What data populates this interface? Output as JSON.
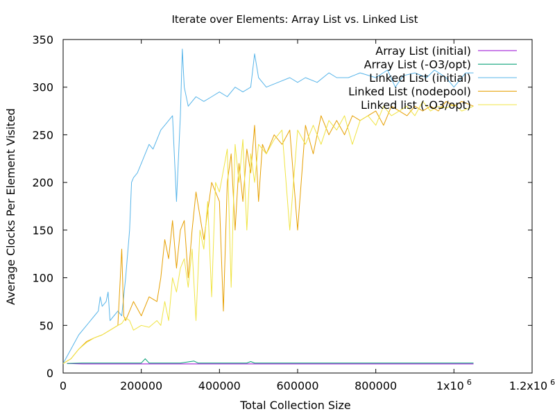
{
  "chart_data": {
    "type": "line",
    "title": "Iterate over Elements:  Array List vs. Linked List",
    "xlabel": "Total Collection Size",
    "ylabel": "Average Clocks Per Element Visited",
    "xlim": [
      0,
      1200000
    ],
    "ylim": [
      0,
      350
    ],
    "x_ticks": [
      {
        "value": 0,
        "label": "0"
      },
      {
        "value": 200000,
        "label": "200000"
      },
      {
        "value": 400000,
        "label": "400000"
      },
      {
        "value": 600000,
        "label": "600000"
      },
      {
        "value": 800000,
        "label": "800000"
      },
      {
        "value": 1000000,
        "label": "1x10",
        "exp": "6"
      },
      {
        "value": 1200000,
        "label": "1.2x10",
        "exp": "6"
      }
    ],
    "y_ticks": [
      0,
      50,
      100,
      150,
      200,
      250,
      300,
      350
    ],
    "grid": false,
    "legend_position": "top-right",
    "series": [
      {
        "name": "Array List (initial)",
        "color": "#9400d3",
        "x": [
          10000,
          50000,
          100000,
          150000,
          200000,
          250000,
          300000,
          350000,
          400000,
          450000,
          500000,
          550000,
          600000,
          650000,
          700000,
          750000,
          800000,
          850000,
          900000,
          950000,
          1000000,
          1050000
        ],
        "y": [
          10,
          9.5,
          9.5,
          9.5,
          9.5,
          9.5,
          9.5,
          9.5,
          9.5,
          9.5,
          9.5,
          9.5,
          9.5,
          9.5,
          9.5,
          9.5,
          9.5,
          9.5,
          9.5,
          9.5,
          9.5,
          9.5
        ]
      },
      {
        "name": "Array List (-O3/opt)",
        "color": "#009e73",
        "x": [
          10000,
          50000,
          100000,
          150000,
          200000,
          210000,
          220000,
          300000,
          335000,
          345000,
          400000,
          470000,
          480000,
          490000,
          550000,
          600000,
          650000,
          700000,
          750000,
          800000,
          850000,
          900000,
          950000,
          1000000,
          1050000
        ],
        "y": [
          10,
          10.5,
          10.5,
          10.5,
          10.5,
          15,
          10.5,
          10.5,
          12.5,
          10.5,
          10.5,
          10.5,
          12,
          10.5,
          10.5,
          10.5,
          10.5,
          10.5,
          10.5,
          10.5,
          10.5,
          10.5,
          10.5,
          10.5,
          10.5
        ]
      },
      {
        "name": "Linked List (initial)",
        "color": "#56b4e9",
        "x": [
          0,
          20000,
          40000,
          60000,
          80000,
          90000,
          95000,
          100000,
          110000,
          115000,
          120000,
          130000,
          140000,
          150000,
          160000,
          170000,
          175000,
          180000,
          190000,
          200000,
          210000,
          220000,
          230000,
          240000,
          250000,
          260000,
          270000,
          280000,
          290000,
          300000,
          305000,
          310000,
          320000,
          330000,
          340000,
          360000,
          380000,
          400000,
          420000,
          440000,
          460000,
          480000,
          490000,
          500000,
          520000,
          550000,
          580000,
          600000,
          620000,
          650000,
          680000,
          700000,
          730000,
          760000,
          800000,
          830000,
          850000,
          870000,
          900000,
          930000,
          950000,
          980000,
          1000000,
          1030000,
          1050000
        ],
        "y": [
          10,
          25,
          40,
          50,
          60,
          65,
          80,
          70,
          75,
          85,
          55,
          60,
          65,
          60,
          100,
          150,
          200,
          205,
          210,
          220,
          230,
          240,
          235,
          245,
          255,
          260,
          265,
          270,
          180,
          270,
          340,
          300,
          280,
          285,
          290,
          285,
          290,
          295,
          290,
          300,
          295,
          300,
          335,
          310,
          300,
          305,
          310,
          305,
          310,
          305,
          315,
          310,
          310,
          315,
          310,
          318,
          300,
          312,
          315,
          310,
          318,
          310,
          300,
          315,
          315
        ]
      },
      {
        "name": "Linked List (nodepool)",
        "color": "#e69f00",
        "x": [
          0,
          20000,
          40000,
          60000,
          80000,
          100000,
          120000,
          140000,
          150000,
          155000,
          160000,
          180000,
          200000,
          220000,
          240000,
          250000,
          260000,
          270000,
          280000,
          290000,
          300000,
          310000,
          320000,
          330000,
          340000,
          360000,
          380000,
          400000,
          410000,
          420000,
          430000,
          440000,
          450000,
          460000,
          470000,
          480000,
          490000,
          500000,
          510000,
          520000,
          540000,
          560000,
          580000,
          600000,
          620000,
          640000,
          660000,
          680000,
          700000,
          720000,
          740000,
          760000,
          780000,
          800000,
          820000,
          840000,
          860000,
          880000,
          900000,
          920000,
          940000,
          960000,
          980000,
          1000000,
          1020000,
          1050000
        ],
        "y": [
          10,
          15,
          25,
          33,
          37,
          40,
          45,
          50,
          130,
          60,
          55,
          75,
          60,
          80,
          75,
          100,
          140,
          120,
          160,
          110,
          150,
          160,
          100,
          150,
          190,
          140,
          200,
          180,
          65,
          200,
          230,
          150,
          220,
          180,
          235,
          210,
          260,
          180,
          240,
          230,
          250,
          240,
          255,
          150,
          260,
          230,
          270,
          250,
          265,
          250,
          270,
          265,
          270,
          275,
          260,
          280,
          275,
          270,
          280,
          275,
          280,
          275,
          285,
          280,
          285,
          280
        ]
      },
      {
        "name": "Linked list (-O3/opt)",
        "color": "#f0e442",
        "x": [
          0,
          20000,
          40000,
          60000,
          80000,
          100000,
          120000,
          140000,
          150000,
          160000,
          170000,
          180000,
          200000,
          220000,
          240000,
          250000,
          260000,
          270000,
          280000,
          290000,
          300000,
          310000,
          320000,
          330000,
          340000,
          350000,
          360000,
          370000,
          380000,
          390000,
          400000,
          420000,
          430000,
          440000,
          450000,
          460000,
          470000,
          480000,
          490000,
          500000,
          520000,
          540000,
          560000,
          580000,
          600000,
          620000,
          640000,
          660000,
          680000,
          700000,
          720000,
          740000,
          760000,
          780000,
          800000,
          820000,
          840000,
          860000,
          880000,
          900000,
          920000,
          940000,
          960000,
          980000,
          1000000,
          1020000,
          1050000
        ],
        "y": [
          10,
          15,
          25,
          32,
          37,
          40,
          45,
          50,
          52,
          58,
          55,
          45,
          50,
          48,
          55,
          50,
          75,
          55,
          100,
          85,
          110,
          120,
          90,
          130,
          55,
          150,
          130,
          180,
          80,
          200,
          190,
          235,
          90,
          240,
          200,
          245,
          150,
          230,
          200,
          240,
          230,
          245,
          255,
          150,
          255,
          240,
          260,
          240,
          265,
          255,
          270,
          240,
          265,
          270,
          260,
          280,
          270,
          275,
          280,
          270,
          285,
          275,
          280,
          278,
          282,
          275,
          280
        ]
      }
    ]
  }
}
